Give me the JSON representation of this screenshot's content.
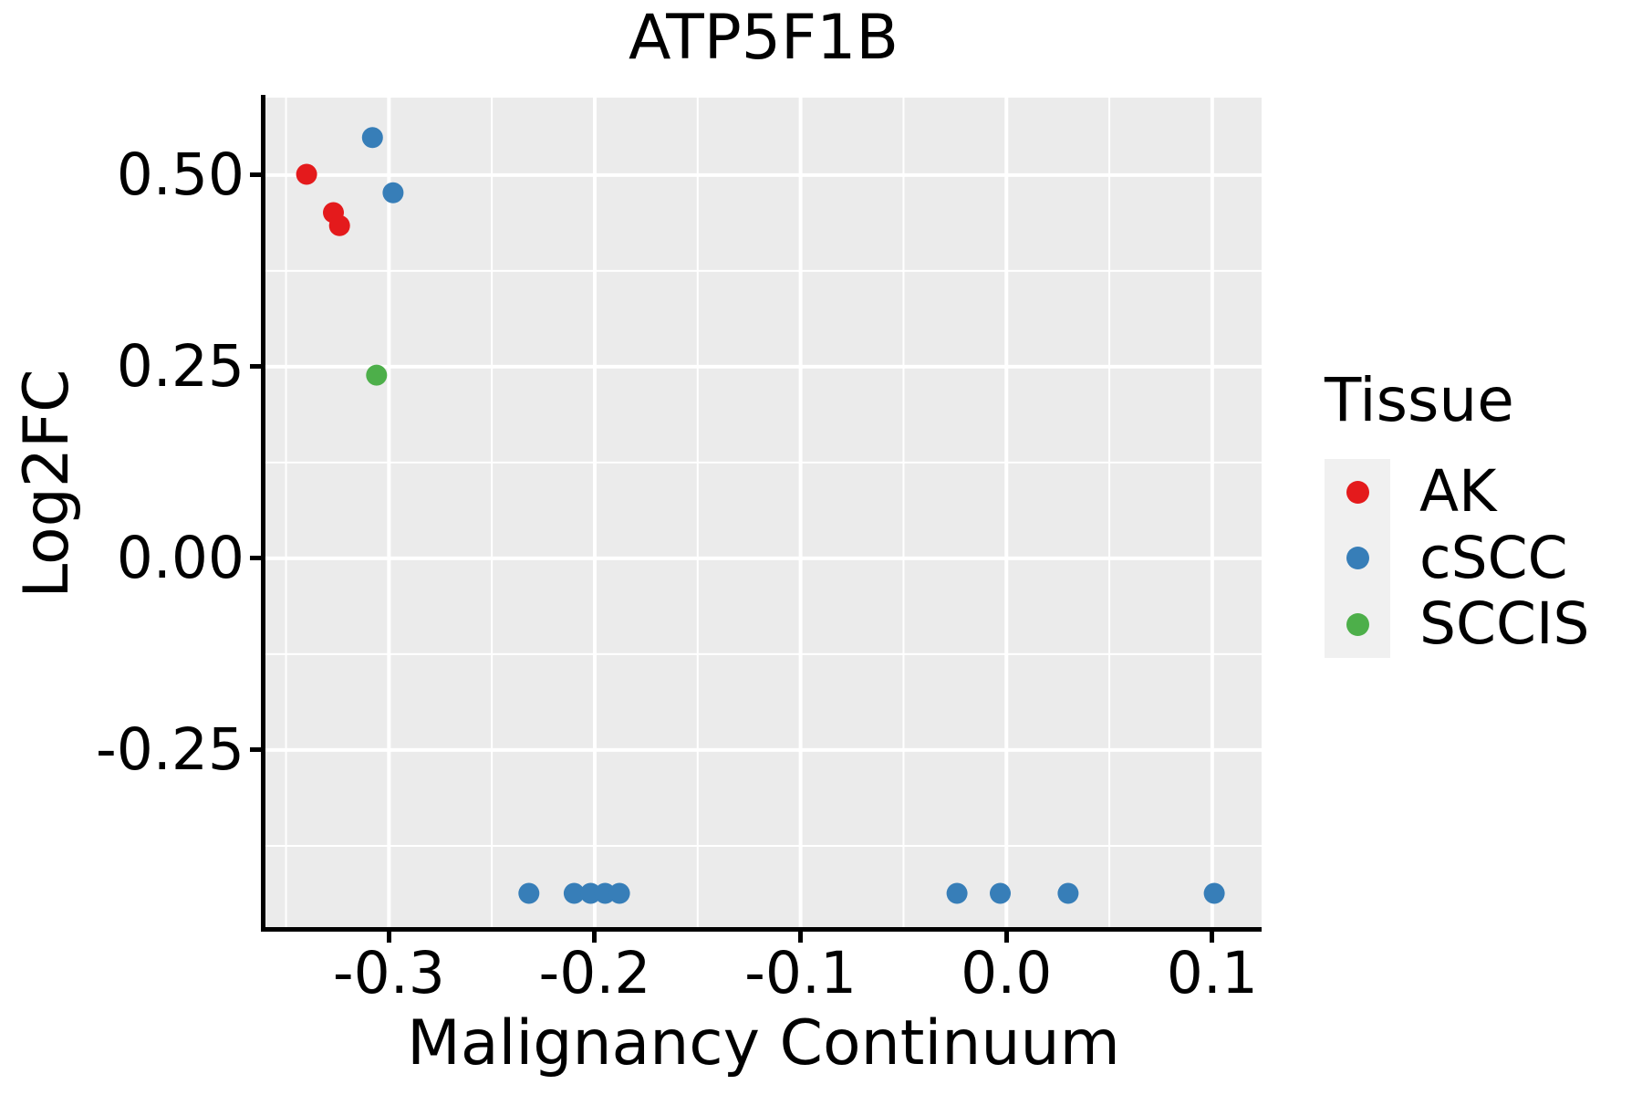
{
  "title": "ATP5F1B",
  "chart_data": {
    "type": "scatter",
    "title": "ATP5F1B",
    "xlabel": "Malignancy Continuum",
    "ylabel": "Log2FC",
    "xlim": [
      -0.36,
      0.124
    ],
    "ylim": [
      -0.481,
      0.601
    ],
    "grid": true,
    "panel_bg": "#EBEBEB",
    "grid_color": "#FFFFFF",
    "point_color_names": {
      "AK": "#E41A1C",
      "cSCC": "#377EB8",
      "SCCIS": "#4DAF4A"
    },
    "x_ticks": {
      "values": [
        -0.3,
        -0.2,
        -0.1,
        0.0,
        0.1
      ],
      "labels": [
        "-0.3",
        "-0.2",
        "-0.1",
        "0.0",
        "0.1"
      ]
    },
    "y_ticks": {
      "values": [
        -0.25,
        0.0,
        0.25,
        0.5
      ],
      "labels": [
        "-0.25",
        "0.00",
        "0.25",
        "0.50"
      ]
    },
    "x_minor": [
      -0.35,
      -0.25,
      -0.15,
      -0.05,
      0.05
    ],
    "y_minor": [
      -0.375,
      -0.125,
      0.125,
      0.375
    ],
    "legend": {
      "title": "Tissue",
      "position": "right",
      "entries": [
        {
          "label": "AK",
          "color": "#E41A1C"
        },
        {
          "label": "cSCC",
          "color": "#377EB8"
        },
        {
          "label": "SCCIS",
          "color": "#4DAF4A"
        }
      ]
    },
    "series": [
      {
        "name": "AK",
        "color": "#E41A1C",
        "points": [
          [
            -0.34,
            0.501
          ],
          [
            -0.327,
            0.451
          ],
          [
            -0.324,
            0.434
          ]
        ]
      },
      {
        "name": "cSCC",
        "color": "#377EB8",
        "points": [
          [
            -0.308,
            0.549
          ],
          [
            -0.298,
            0.477
          ],
          [
            -0.232,
            -0.437
          ],
          [
            -0.21,
            -0.437
          ],
          [
            -0.202,
            -0.437
          ],
          [
            -0.195,
            -0.437
          ],
          [
            -0.188,
            -0.437
          ],
          [
            -0.024,
            -0.437
          ],
          [
            -0.003,
            -0.437
          ],
          [
            0.03,
            -0.437
          ],
          [
            0.101,
            -0.437
          ]
        ]
      },
      {
        "name": "SCCIS",
        "color": "#4DAF4A",
        "points": [
          [
            -0.306,
            0.239
          ]
        ]
      }
    ]
  }
}
